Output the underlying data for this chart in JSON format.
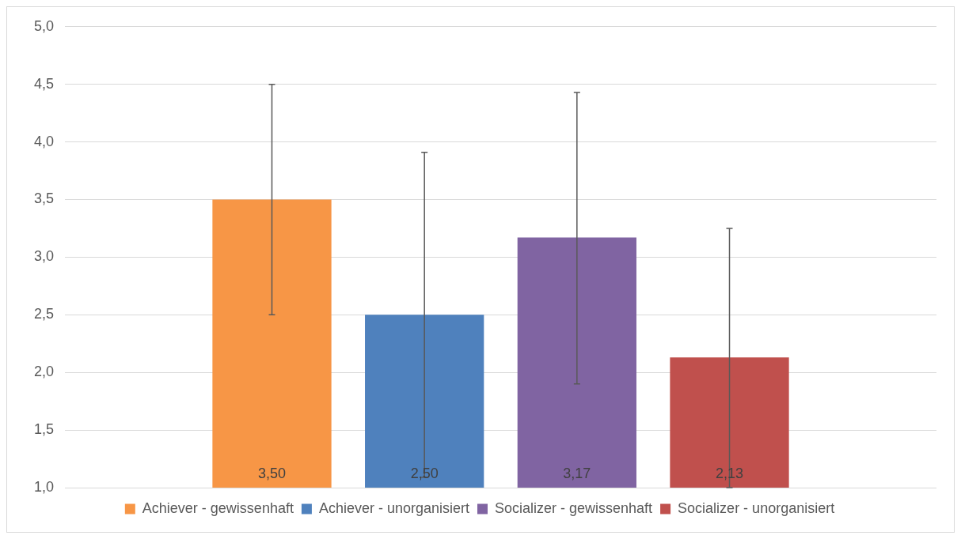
{
  "chart_data": {
    "type": "bar",
    "categories": [
      null
    ],
    "series": [
      {
        "name": "Achiever - gewissenhaft",
        "color": "#f79646",
        "values": [
          3.5
        ],
        "errors": [
          [
            2.5,
            4.5
          ]
        ],
        "value_labels": [
          "3,50"
        ]
      },
      {
        "name": "Achiever - unorganisiert",
        "color": "#4f81bd",
        "values": [
          2.5
        ],
        "errors": [
          [
            1.09,
            3.91
          ]
        ],
        "value_labels": [
          "2,50"
        ]
      },
      {
        "name": "Socializer - gewissenhaft",
        "color": "#8064a2",
        "values": [
          3.17
        ],
        "errors": [
          [
            1.9,
            4.43
          ]
        ],
        "value_labels": [
          "3,17"
        ]
      },
      {
        "name": "Socializer - unorganisiert",
        "color": "#c0504d",
        "values": [
          2.13
        ],
        "errors": [
          [
            1.0,
            3.25
          ]
        ],
        "value_labels": [
          "2,13"
        ]
      }
    ],
    "ylim": [
      1,
      5
    ],
    "yticks": [
      {
        "value": 1,
        "label": "1,0"
      },
      {
        "value": 1.5,
        "label": "1,5"
      },
      {
        "value": 2,
        "label": "2,0"
      },
      {
        "value": 2.5,
        "label": "2,5"
      },
      {
        "value": 3,
        "label": "3,0"
      },
      {
        "value": 3.5,
        "label": "3,5"
      },
      {
        "value": 4,
        "label": "4,0"
      },
      {
        "value": 4.5,
        "label": "4,5"
      },
      {
        "value": 5,
        "label": "5,0"
      }
    ],
    "grid": "y",
    "legend": "bottom"
  }
}
